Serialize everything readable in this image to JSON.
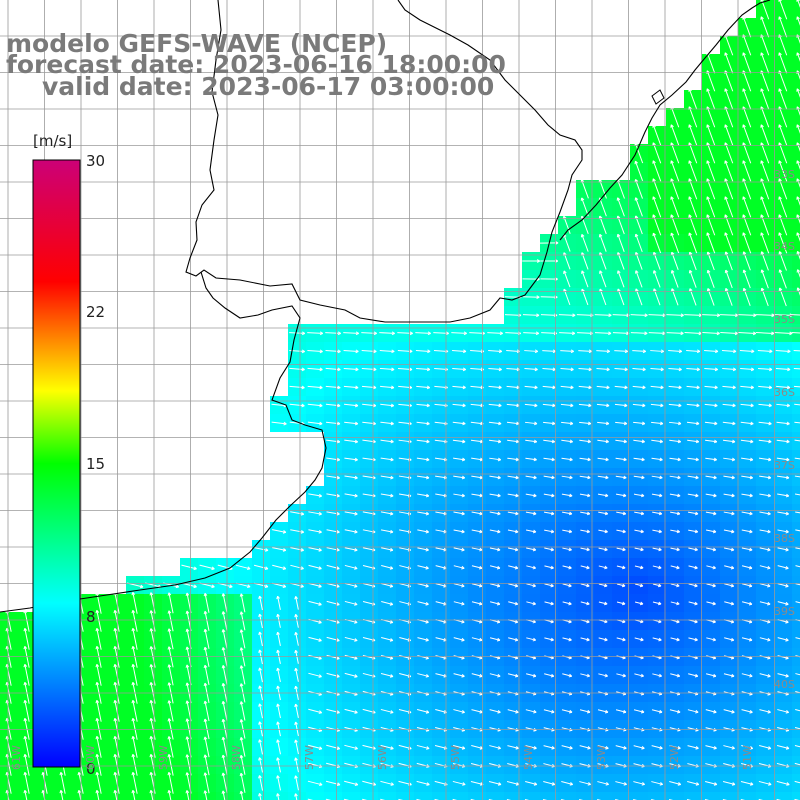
{
  "title": {
    "line1": "modelo GEFS-WAVE (NCEP)",
    "line2": "forecast date: 2023-06-16 18:00:00",
    "line3": "valid date: 2023-06-17 03:00:00"
  },
  "colorbar": {
    "unit": "[m/s]",
    "ticks": [
      "30",
      "22",
      "15",
      "8",
      "0"
    ],
    "tick_values": [
      30,
      22,
      15,
      8,
      0
    ],
    "colors": [
      "#0000ff",
      "#00ffff",
      "#00ff00",
      "#ffff00",
      "#ff0000",
      "#cc0077"
    ]
  },
  "lat_labels": [
    "33S",
    "34S",
    "35S",
    "36S",
    "37S",
    "38S",
    "39S",
    "40S"
  ],
  "lon_labels": [
    "61W",
    "60W",
    "59W",
    "58W",
    "57W",
    "56W",
    "55W",
    "54W",
    "53W",
    "52W",
    "51W"
  ],
  "colors": {
    "land": "#ffffff",
    "coast": "#000000",
    "grid": "#9a9a9a",
    "arrows": "#ffffff",
    "title": "#7a7a7a"
  }
}
